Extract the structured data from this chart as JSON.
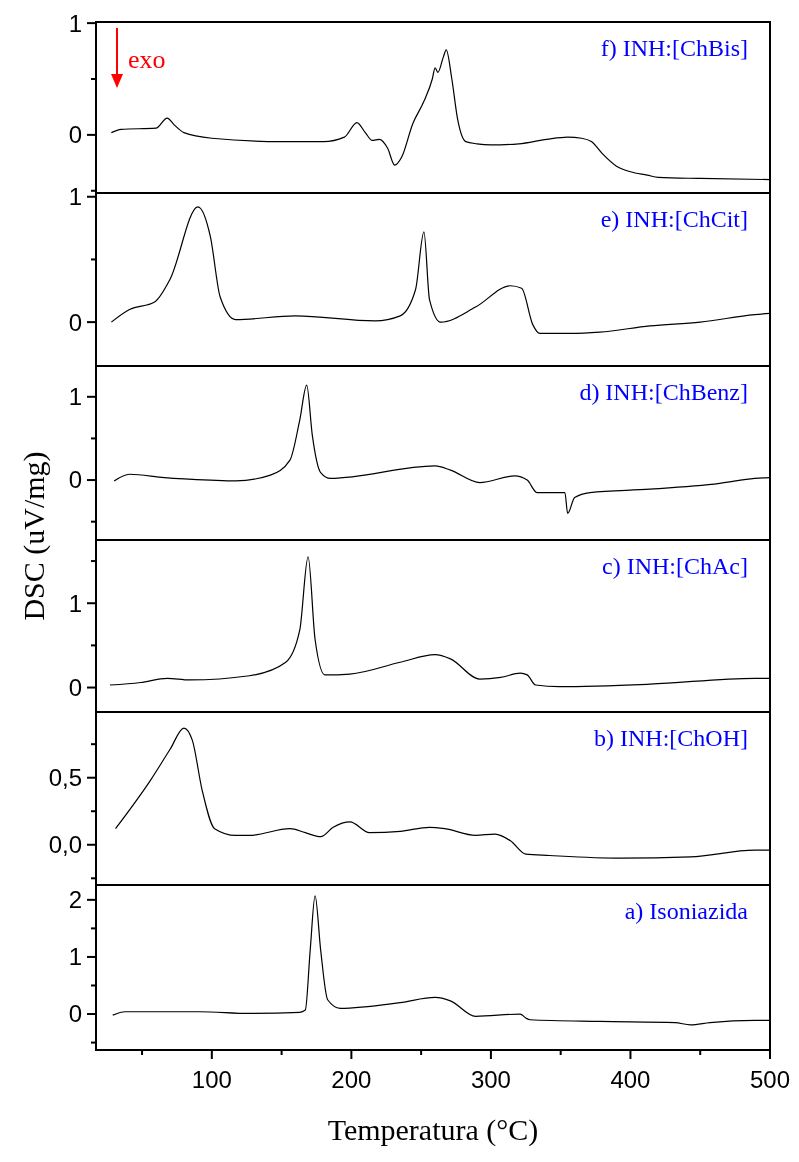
{
  "chart_data": [
    {
      "type": "line",
      "title": "f) INH:[ChBis]",
      "annotations": [
        "exo"
      ],
      "xlim": [
        17,
        500
      ],
      "ylim": [
        -0.52,
        1.01
      ],
      "yticks": [
        {
          "value": -0.5,
          "label": null
        },
        0,
        {
          "value": 0.5,
          "label": null
        },
        1
      ],
      "tick_labels": "y",
      "series": [
        {
          "color": "#000000",
          "x": [
            28,
            35,
            60,
            68,
            73,
            80,
            100,
            150,
            180,
            195,
            204,
            210,
            215,
            220,
            226,
            231,
            236,
            244,
            252,
            258,
            260,
            262,
            266,
            268,
            272,
            276,
            282,
            290,
            300,
            320,
            340,
            355,
            365,
            372,
            380,
            390,
            400,
            412,
            420,
            450,
            500
          ],
          "values": [
            0.02,
            0.05,
            0.06,
            0.15,
            0.09,
            0.02,
            -0.03,
            -0.06,
            -0.06,
            -0.02,
            0.11,
            0.02,
            -0.05,
            -0.04,
            -0.12,
            -0.27,
            -0.2,
            0.1,
            0.3,
            0.5,
            0.6,
            0.56,
            0.7,
            0.76,
            0.5,
            0.15,
            -0.06,
            -0.08,
            -0.09,
            -0.08,
            -0.04,
            -0.02,
            -0.03,
            -0.06,
            -0.17,
            -0.28,
            -0.33,
            -0.36,
            -0.38,
            -0.39,
            -0.4
          ]
        }
      ]
    },
    {
      "type": "line",
      "title": "e) INH:[ChCit]",
      "xlim": [
        17,
        500
      ],
      "ylim": [
        -0.35,
        1.03
      ],
      "yticks": [
        0,
        {
          "value": 0.5,
          "label": null
        },
        1
      ],
      "tick_labels": "y",
      "series": [
        {
          "color": "#000000",
          "x": [
            28,
            41,
            59,
            70,
            90,
            99,
            106,
            117,
            160,
            217,
            235,
            246,
            252,
            256,
            264,
            289,
            314,
            322,
            330,
            335,
            357,
            378,
            414,
            450,
            489,
            500
          ],
          "values": [
            0.0,
            0.1,
            0.16,
            0.34,
            0.92,
            0.68,
            0.2,
            0.02,
            0.05,
            0.01,
            0.05,
            0.26,
            0.72,
            0.18,
            0.0,
            0.12,
            0.29,
            0.27,
            -0.02,
            -0.09,
            -0.09,
            -0.08,
            -0.03,
            0.0,
            0.06,
            0.07
          ]
        }
      ]
    },
    {
      "type": "line",
      "title": "d) INH:[ChBenz]",
      "xlim": [
        17,
        500
      ],
      "ylim": [
        -0.72,
        1.37
      ],
      "yticks": [
        {
          "value": -0.5,
          "label": null
        },
        0,
        {
          "value": 0.5,
          "label": null
        },
        1
      ],
      "tick_labels": "y",
      "series": [
        {
          "color": "#000000",
          "x": [
            30,
            41,
            66,
            99,
            117,
            142,
            156,
            163,
            168,
            172,
            178,
            185,
            260,
            271,
            292,
            317,
            326,
            333,
            353,
            355,
            360,
            371,
            414,
            464,
            489,
            500
          ],
          "values": [
            -0.01,
            0.07,
            0.03,
            0.0,
            -0.01,
            0.06,
            0.24,
            0.72,
            1.14,
            0.54,
            0.09,
            0.02,
            0.17,
            0.12,
            -0.03,
            0.05,
            0.0,
            -0.15,
            -0.15,
            -0.4,
            -0.21,
            -0.15,
            -0.11,
            -0.04,
            0.02,
            0.03
          ]
        }
      ]
    },
    {
      "type": "line",
      "title": "c) INH:[ChAc]",
      "ylabel": "DSC (uV/mg)",
      "xlim": [
        17,
        500
      ],
      "ylim": [
        -0.29,
        1.75
      ],
      "yticks": [
        0,
        {
          "value": 0.5,
          "label": null
        },
        1,
        {
          "value": 1.5,
          "label": null
        }
      ],
      "tick_labels": "y",
      "series": [
        {
          "color": "#000000",
          "x": [
            27,
            49,
            68,
            84,
            127,
            153,
            163,
            169,
            174,
            181,
            199,
            235,
            260,
            271,
            292,
            307,
            321,
            326,
            332,
            349,
            414,
            489,
            500
          ],
          "values": [
            0.03,
            0.06,
            0.11,
            0.09,
            0.14,
            0.3,
            0.68,
            1.55,
            0.57,
            0.15,
            0.16,
            0.3,
            0.39,
            0.34,
            0.1,
            0.12,
            0.17,
            0.15,
            0.03,
            0.01,
            0.04,
            0.11,
            0.11
          ]
        }
      ]
    },
    {
      "type": "line",
      "title": "b) INH:[ChOH]",
      "xlim": [
        17,
        500
      ],
      "ylim": [
        -0.3,
        0.99
      ],
      "yticks": [
        {
          "value": -0.25,
          "label": null
        },
        {
          "value": 0,
          "label": "0,0"
        },
        {
          "value": 0.25,
          "label": null
        },
        {
          "value": 0.5,
          "label": "0,5"
        },
        {
          "value": 0.75,
          "label": null
        }
      ],
      "tick_labels": "y",
      "series": [
        {
          "color": "#000000",
          "x": [
            31,
            56,
            70,
            80,
            86,
            93,
            102,
            117,
            127,
            156,
            167,
            178,
            187,
            199,
            213,
            235,
            256,
            267,
            289,
            303,
            314,
            325,
            342,
            393,
            443,
            489,
            500
          ],
          "values": [
            0.12,
            0.48,
            0.71,
            0.87,
            0.78,
            0.41,
            0.12,
            0.07,
            0.07,
            0.12,
            0.09,
            0.06,
            0.13,
            0.17,
            0.09,
            0.1,
            0.13,
            0.12,
            0.07,
            0.08,
            0.03,
            -0.07,
            -0.08,
            -0.1,
            -0.09,
            -0.04,
            -0.04
          ]
        }
      ]
    },
    {
      "type": "line",
      "title": "a) Isoniazida",
      "xlabel": "Temperatura (°C)",
      "xlim": [
        17,
        500
      ],
      "ylim": [
        -0.63,
        2.26
      ],
      "xticks": [
        {
          "value": 50,
          "label": null
        },
        100,
        {
          "value": 150,
          "label": null
        },
        200,
        {
          "value": 250,
          "label": null
        },
        300,
        {
          "value": 350,
          "label": null
        },
        400,
        {
          "value": 450,
          "label": null
        },
        500
      ],
      "yticks": [
        {
          "value": -0.5,
          "label": null
        },
        0,
        {
          "value": 0.5,
          "label": null
        },
        1,
        {
          "value": 1.5,
          "label": null
        },
        2
      ],
      "series": [
        {
          "color": "#000000",
          "x": [
            29,
            38,
            91.5,
            127,
            163,
            167,
            170.5,
            174,
            178,
            183,
            192,
            235,
            260,
            271,
            289,
            321,
            325,
            328,
            378,
            432,
            443,
            457,
            489,
            500
          ],
          "values": [
            -0.02,
            0.04,
            0.04,
            0.01,
            0.03,
            0.07,
            1.12,
            2.07,
            1.12,
            0.25,
            0.1,
            0.2,
            0.29,
            0.23,
            -0.04,
            0.0,
            -0.07,
            -0.1,
            -0.13,
            -0.15,
            -0.19,
            -0.15,
            -0.11,
            -0.11
          ]
        }
      ]
    }
  ]
}
